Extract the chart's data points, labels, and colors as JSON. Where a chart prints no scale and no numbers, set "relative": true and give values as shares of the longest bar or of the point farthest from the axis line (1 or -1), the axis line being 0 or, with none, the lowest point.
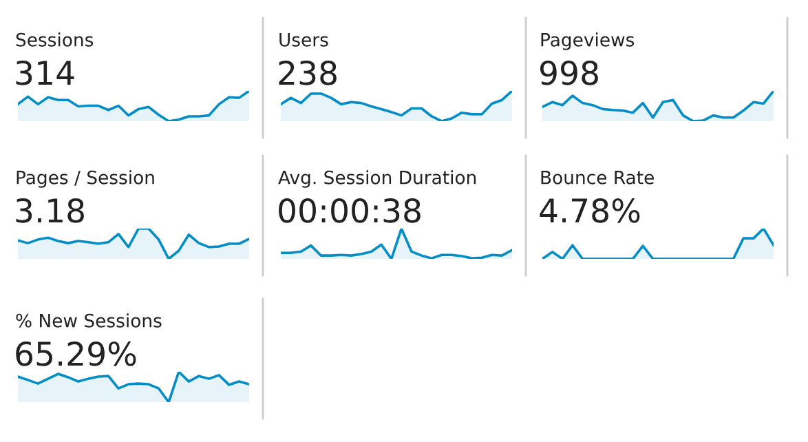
{
  "chart_data": [
    {
      "type": "area",
      "title": "Sessions",
      "subtitle": "314",
      "relative": true,
      "color": "#058dc7",
      "categories": [
        null,
        null,
        null,
        null,
        null,
        null,
        null,
        null,
        null,
        null,
        null,
        null,
        null,
        null,
        null,
        null,
        null,
        null,
        null,
        null,
        null,
        null,
        null,
        null
      ],
      "values": [
        0.56,
        0.81,
        0.56,
        0.79,
        0.7,
        0.7,
        0.49,
        0.51,
        0.51,
        0.37,
        0.51,
        0.19,
        0.4,
        0.47,
        0.21,
        0,
        0.05,
        0.16,
        0.16,
        0.19,
        0.56,
        0.79,
        0.77,
        1
      ]
    },
    {
      "type": "area",
      "title": "Users",
      "subtitle": "238",
      "relative": true,
      "color": "#058dc7",
      "categories": [
        null,
        null,
        null,
        null,
        null,
        null,
        null,
        null,
        null,
        null,
        null,
        null,
        null,
        null,
        null,
        null,
        null,
        null,
        null,
        null,
        null,
        null,
        null,
        null
      ],
      "values": [
        0.56,
        0.77,
        0.6,
        0.91,
        0.91,
        0.77,
        0.56,
        0.63,
        0.6,
        0.49,
        0.4,
        0.3,
        0.19,
        0.42,
        0.42,
        0.16,
        0,
        0.09,
        0.28,
        0.23,
        0.23,
        0.58,
        0.7,
        1
      ]
    },
    {
      "type": "area",
      "title": "Pageviews",
      "subtitle": "998",
      "relative": true,
      "color": "#058dc7",
      "categories": [
        null,
        null,
        null,
        null,
        null,
        null,
        null,
        null,
        null,
        null,
        null,
        null,
        null,
        null,
        null,
        null,
        null,
        null,
        null,
        null,
        null,
        null,
        null,
        null
      ],
      "values": [
        0.47,
        0.63,
        0.53,
        0.84,
        0.6,
        0.53,
        0.4,
        0.37,
        0.35,
        0.28,
        0.6,
        0.12,
        0.63,
        0.7,
        0.19,
        0,
        0.02,
        0.19,
        0.12,
        0.12,
        0.35,
        0.63,
        0.58,
        1
      ]
    },
    {
      "type": "area",
      "title": "Pages / Session",
      "subtitle": "3.18",
      "relative": true,
      "color": "#058dc7",
      "categories": [
        null,
        null,
        null,
        null,
        null,
        null,
        null,
        null,
        null,
        null,
        null,
        null,
        null,
        null,
        null,
        null,
        null,
        null,
        null,
        null,
        null,
        null,
        null,
        null
      ],
      "values": [
        0.61,
        0.52,
        0.64,
        0.7,
        0.59,
        0.52,
        0.59,
        0.55,
        0.5,
        0.55,
        0.82,
        0.39,
        1,
        1,
        0.64,
        0,
        0.27,
        0.8,
        0.52,
        0.39,
        0.41,
        0.5,
        0.5,
        0.66
      ]
    },
    {
      "type": "area",
      "title": "Avg. Session Duration",
      "subtitle": "00:00:38",
      "relative": true,
      "color": "#058dc7",
      "categories": [
        null,
        null,
        null,
        null,
        null,
        null,
        null,
        null,
        null,
        null,
        null,
        null,
        null,
        null,
        null,
        null,
        null,
        null,
        null,
        null,
        null,
        null,
        null,
        null
      ],
      "values": [
        0.2,
        0.2,
        0.24,
        0.44,
        0.11,
        0.11,
        0.13,
        0.11,
        0.16,
        0.24,
        0.47,
        0,
        1,
        0.24,
        0.11,
        0.02,
        0.13,
        0.13,
        0.09,
        0.02,
        0.04,
        0.13,
        0.11,
        0.29
      ]
    },
    {
      "type": "area",
      "title": "Bounce Rate",
      "subtitle": "4.78%",
      "relative": true,
      "color": "#058dc7",
      "categories": [
        null,
        null,
        null,
        null,
        null,
        null,
        null,
        null,
        null,
        null,
        null,
        null,
        null,
        null,
        null,
        null,
        null,
        null,
        null,
        null,
        null,
        null,
        null,
        null
      ],
      "values": [
        0,
        0.23,
        0,
        0.45,
        0,
        0,
        0,
        0,
        0,
        0,
        0.43,
        0,
        0,
        0,
        0,
        0,
        0,
        0,
        0,
        0,
        0.68,
        0.68,
        1,
        0.45
      ]
    },
    {
      "type": "area",
      "title": "% New Sessions",
      "subtitle": "65.29%",
      "relative": true,
      "color": "#058dc7",
      "categories": [
        null,
        null,
        null,
        null,
        null,
        null,
        null,
        null,
        null,
        null,
        null,
        null,
        null,
        null,
        null,
        null,
        null,
        null,
        null,
        null,
        null,
        null,
        null,
        null
      ],
      "values": [
        0.84,
        0.73,
        0.61,
        0.77,
        0.93,
        0.82,
        0.68,
        0.77,
        0.84,
        0.86,
        0.45,
        0.59,
        0.61,
        0.59,
        0.45,
        0,
        1,
        0.68,
        0.86,
        0.77,
        0.89,
        0.57,
        0.68,
        0.59
      ]
    }
  ]
}
